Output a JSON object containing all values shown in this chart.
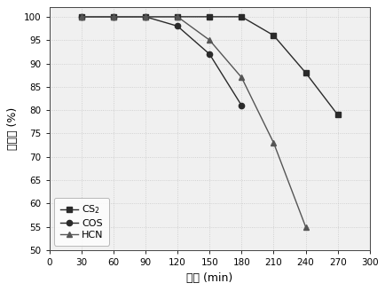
{
  "CS2": {
    "x": [
      30,
      60,
      90,
      120,
      150,
      180,
      210,
      240,
      270
    ],
    "y": [
      100,
      100,
      100,
      100,
      100,
      100,
      96,
      88,
      79
    ],
    "marker": "s",
    "color": "#2a2a2a",
    "label": "CS$_2$"
  },
  "COS": {
    "x": [
      30,
      60,
      90,
      120,
      150,
      180
    ],
    "y": [
      100,
      100,
      100,
      98,
      92,
      81
    ],
    "marker": "o",
    "color": "#2a2a2a",
    "label": "COS"
  },
  "HCN": {
    "x": [
      30,
      60,
      90,
      120,
      150,
      180,
      210,
      240
    ],
    "y": [
      100,
      100,
      100,
      100,
      95,
      87,
      73,
      55
    ],
    "marker": "^",
    "color": "#555555",
    "label": "HCN"
  },
  "xlabel": "时间 (min)",
  "ylabel": "去除率 (%)",
  "xlim": [
    0,
    300
  ],
  "ylim": [
    50,
    102
  ],
  "xticks": [
    0,
    30,
    60,
    90,
    120,
    150,
    180,
    210,
    240,
    270,
    300
  ],
  "yticks": [
    50,
    55,
    60,
    65,
    70,
    75,
    80,
    85,
    90,
    95,
    100
  ],
  "grid_color": "#c8c8c8",
  "background_color": "#f0f0f0",
  "legend_loc": "lower left",
  "legend_fontsize": 8,
  "tick_fontsize": 7.5,
  "xlabel_fontsize": 9,
  "ylabel_fontsize": 9
}
